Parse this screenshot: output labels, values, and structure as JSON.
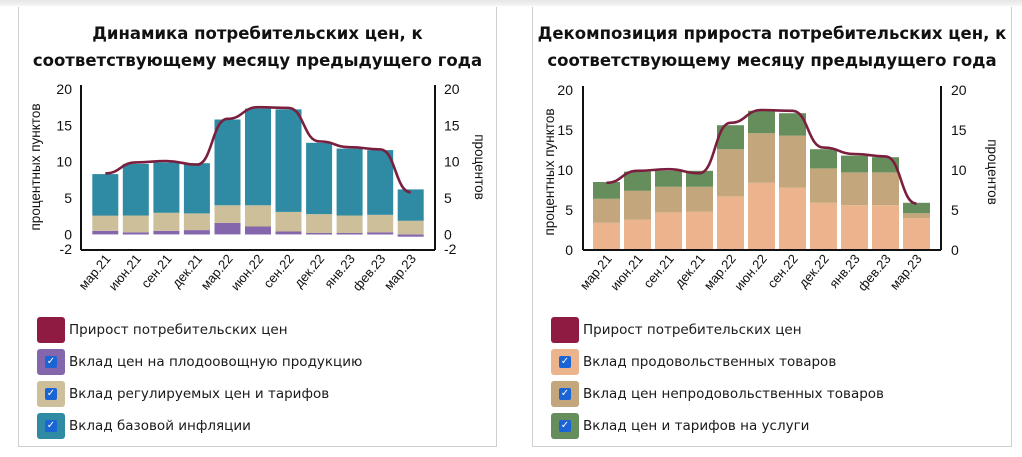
{
  "colors": {
    "cpi_line": "#7b1f3f",
    "cpi_swatch": "#8f1b42",
    "fruit_veg": "#8466ac",
    "regulated": "#cdbf99",
    "core": "#2f8aa3",
    "food": "#ecb48d",
    "nonfood": "#c3a67b",
    "services": "#668d5c",
    "checkbox": "#1a64d6"
  },
  "chart_data": [
    {
      "type": "bar",
      "stacked": true,
      "title": "Динамика потребительских цен, к соответствующему месяцу предыдущего года",
      "ylabel": "процентных пунктов",
      "ylabel_right": "процентов",
      "ylim": [
        -2,
        20
      ],
      "yticks": [
        "20",
        "15",
        "10",
        "5",
        "0",
        "-2"
      ],
      "yticks_right": [
        "20",
        "15",
        "10",
        "5",
        "0",
        "-2"
      ],
      "grid": false,
      "legend_position": "bottom",
      "categories": [
        "мар.21",
        "июн.21",
        "сен.21",
        "дек.21",
        "мар.22",
        "июн.22",
        "сен.22",
        "дек.22",
        "янв.23",
        "фев.23",
        "мар.23"
      ],
      "series": [
        {
          "name": "Вклад цен на плодоовощную продукцию",
          "kind": "bar",
          "color": "#8466ac",
          "checked": true,
          "values": [
            0.5,
            0.3,
            0.5,
            0.6,
            1.6,
            1.1,
            0.4,
            0.2,
            0.2,
            0.3,
            -0.3
          ]
        },
        {
          "name": "Вклад регулируемых цен и тарифов",
          "kind": "bar",
          "color": "#cdbf99",
          "checked": true,
          "values": [
            2.1,
            2.3,
            2.5,
            2.3,
            2.4,
            2.9,
            2.7,
            2.6,
            2.4,
            2.4,
            1.9
          ]
        },
        {
          "name": "Вклад базовой инфляции",
          "kind": "bar",
          "color": "#2f8aa3",
          "checked": true,
          "values": [
            5.7,
            7.1,
            6.9,
            6.9,
            11.8,
            13.3,
            14.1,
            9.8,
            9.2,
            8.9,
            4.3
          ]
        },
        {
          "name": "Прирост потребительских цен",
          "kind": "line",
          "color": "#7b1f3f",
          "values": [
            8.4,
            9.9,
            10.1,
            9.6,
            15.9,
            17.5,
            17.4,
            12.8,
            12.0,
            11.7,
            5.8
          ]
        }
      ]
    },
    {
      "type": "bar",
      "stacked": true,
      "title": "Декомпозиция прироста потребительских цен, к соответствующему месяцу предыдущего года",
      "ylabel": "процентных пунктов",
      "ylabel_right": "процентов",
      "ylim": [
        0,
        20
      ],
      "yticks": [
        "20",
        "15",
        "10",
        "5",
        "0"
      ],
      "yticks_right": [
        "20",
        "15",
        "10",
        "5",
        "0"
      ],
      "grid": false,
      "legend_position": "bottom",
      "categories": [
        "мар.21",
        "июн.21",
        "сен.21",
        "дек.21",
        "мар.22",
        "июн.22",
        "сен.22",
        "дек.22",
        "янв.23",
        "фев.23",
        "мар.23"
      ],
      "series": [
        {
          "name": "Вклад продовольственных товаров",
          "kind": "bar",
          "color": "#ecb48d",
          "checked": true,
          "values": [
            3.4,
            3.8,
            4.7,
            4.8,
            6.7,
            8.4,
            7.8,
            5.9,
            5.6,
            5.6,
            4.0
          ]
        },
        {
          "name": "Вклад цен непродовольственных товаров",
          "kind": "bar",
          "color": "#c3a67b",
          "checked": true,
          "values": [
            3.0,
            3.6,
            3.2,
            3.1,
            5.9,
            6.2,
            6.5,
            4.3,
            4.1,
            4.1,
            0.6
          ]
        },
        {
          "name": "Вклад цен и тарифов на услуги",
          "kind": "bar",
          "color": "#668d5c",
          "checked": true,
          "values": [
            2.1,
            2.4,
            2.0,
            2.0,
            3.0,
            2.8,
            2.8,
            2.4,
            2.1,
            1.9,
            1.3
          ]
        },
        {
          "name": "Прирост потребительских цен",
          "kind": "line",
          "color": "#7b1f3f",
          "values": [
            8.4,
            9.9,
            10.1,
            9.6,
            15.9,
            17.5,
            17.4,
            12.8,
            12.0,
            11.7,
            5.8
          ]
        }
      ]
    }
  ],
  "left_panel": {
    "title_line1": "Динамика потребительских цен, к",
    "title_line2": "соответствующему месяцу предыдущего года",
    "legend": [
      {
        "label": "Прирост потребительских цен"
      },
      {
        "label": "Вклад цен на плодоовощную продукцию",
        "check": "✓"
      },
      {
        "label": "Вклад регулируемых цен и тарифов",
        "check": "✓"
      },
      {
        "label": "Вклад базовой инфляции",
        "check": "✓"
      }
    ]
  },
  "right_panel": {
    "title_line1": "Декомпозиция прироста потребительских цен, к",
    "title_line2": "соответствующему месяцу предыдущего года",
    "legend": [
      {
        "label": "Прирост потребительских цен"
      },
      {
        "label": "Вклад продовольственных товаров",
        "check": "✓"
      },
      {
        "label": "Вклад цен непродовольственных товаров",
        "check": "✓"
      },
      {
        "label": "Вклад цен и тарифов на услуги",
        "check": "✓"
      }
    ]
  }
}
